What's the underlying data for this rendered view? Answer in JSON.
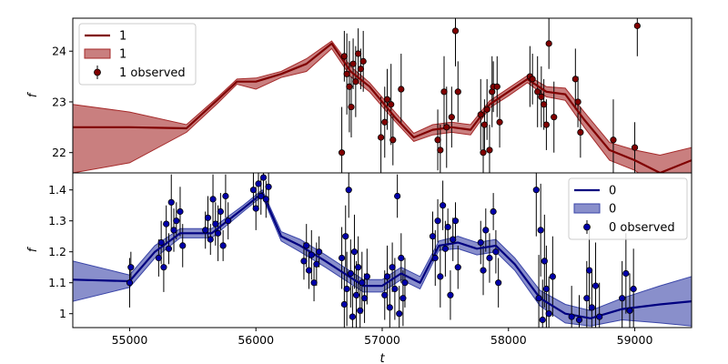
{
  "chart_data": [
    {
      "type": "line",
      "panel": "top",
      "ylabel": "f",
      "xlim": [
        54550,
        59450
      ],
      "ylim": [
        21.6,
        24.65
      ],
      "yticks": [
        22,
        23,
        24
      ],
      "legend": {
        "placement": "top-left",
        "labels": [
          "1",
          "1",
          "1 observed"
        ]
      },
      "colors": {
        "line": "#800000",
        "band": "#a52a2a",
        "points": "#800000"
      },
      "model": {
        "t": [
          54550,
          55000,
          55450,
          55700,
          55850,
          56000,
          56200,
          56400,
          56600,
          56750,
          56900,
          57100,
          57250,
          57400,
          57550,
          57700,
          57850,
          58000,
          58150,
          58300,
          58450,
          58600,
          58800,
          59000,
          59200,
          59450
        ],
        "mean": [
          22.5,
          22.5,
          22.48,
          23.05,
          23.4,
          23.4,
          23.55,
          23.75,
          24.15,
          23.6,
          23.3,
          22.7,
          22.3,
          22.45,
          22.5,
          22.45,
          22.95,
          23.2,
          23.45,
          23.2,
          23.15,
          22.65,
          22.05,
          21.85,
          21.6,
          21.85
        ],
        "upper": [
          22.95,
          22.8,
          22.55,
          23.1,
          23.45,
          23.47,
          23.6,
          23.85,
          24.2,
          23.7,
          23.38,
          22.8,
          22.38,
          22.55,
          22.6,
          22.55,
          23.02,
          23.27,
          23.52,
          23.3,
          23.27,
          22.8,
          22.2,
          22.05,
          21.95,
          22.1
        ],
        "lower": [
          21.6,
          21.8,
          22.4,
          22.98,
          23.35,
          23.25,
          23.48,
          23.6,
          24.05,
          23.5,
          23.2,
          22.62,
          22.22,
          22.35,
          22.4,
          22.35,
          22.88,
          23.12,
          23.38,
          23.1,
          23.03,
          22.5,
          21.85,
          21.65,
          21.3,
          21.6
        ]
      },
      "observed": [
        {
          "t": 56680,
          "y": 22.0,
          "err": 0.9
        },
        {
          "t": 56700,
          "y": 23.9,
          "err": 0.5
        },
        {
          "t": 56720,
          "y": 23.55,
          "err": 0.8
        },
        {
          "t": 56740,
          "y": 23.3,
          "err": 0.9
        },
        {
          "t": 56755,
          "y": 22.9,
          "err": 0.6
        },
        {
          "t": 56770,
          "y": 23.75,
          "err": 0.5
        },
        {
          "t": 56790,
          "y": 23.4,
          "err": 0.7
        },
        {
          "t": 56810,
          "y": 23.95,
          "err": 0.5
        },
        {
          "t": 56830,
          "y": 23.65,
          "err": 0.4
        },
        {
          "t": 56850,
          "y": 23.8,
          "err": 0.6
        },
        {
          "t": 56990,
          "y": 22.3,
          "err": 0.8
        },
        {
          "t": 57020,
          "y": 22.6,
          "err": 0.7
        },
        {
          "t": 57040,
          "y": 23.05,
          "err": 0.6
        },
        {
          "t": 57070,
          "y": 22.95,
          "err": 0.8
        },
        {
          "t": 57085,
          "y": 22.25,
          "err": 0.5
        },
        {
          "t": 57150,
          "y": 23.25,
          "err": 0.7
        },
        {
          "t": 57440,
          "y": 22.25,
          "err": 0.6
        },
        {
          "t": 57460,
          "y": 22.05,
          "err": 0.5
        },
        {
          "t": 57490,
          "y": 23.2,
          "err": 0.7
        },
        {
          "t": 57510,
          "y": 22.5,
          "err": 0.8
        },
        {
          "t": 57550,
          "y": 22.7,
          "err": 0.6
        },
        {
          "t": 57580,
          "y": 24.4,
          "err": 0.7
        },
        {
          "t": 57600,
          "y": 23.2,
          "err": 0.6
        },
        {
          "t": 57780,
          "y": 22.75,
          "err": 0.7
        },
        {
          "t": 57800,
          "y": 22.0,
          "err": 0.5
        },
        {
          "t": 57810,
          "y": 22.55,
          "err": 0.5
        },
        {
          "t": 57830,
          "y": 22.85,
          "err": 0.6
        },
        {
          "t": 57850,
          "y": 22.05,
          "err": 0.5
        },
        {
          "t": 57870,
          "y": 23.2,
          "err": 0.7
        },
        {
          "t": 57880,
          "y": 23.3,
          "err": 0.5
        },
        {
          "t": 57910,
          "y": 23.3,
          "err": 0.6
        },
        {
          "t": 57930,
          "y": 22.6,
          "err": 0.5
        },
        {
          "t": 58170,
          "y": 23.5,
          "err": 0.6
        },
        {
          "t": 58190,
          "y": 23.45,
          "err": 0.5
        },
        {
          "t": 58230,
          "y": 23.2,
          "err": 0.7
        },
        {
          "t": 58260,
          "y": 23.1,
          "err": 0.6
        },
        {
          "t": 58280,
          "y": 22.95,
          "err": 0.5
        },
        {
          "t": 58300,
          "y": 22.55,
          "err": 0.5
        },
        {
          "t": 58320,
          "y": 24.15,
          "err": 0.5
        },
        {
          "t": 58360,
          "y": 22.7,
          "err": 0.7
        },
        {
          "t": 58530,
          "y": 23.45,
          "err": 0.6
        },
        {
          "t": 58550,
          "y": 23.0,
          "err": 0.5
        },
        {
          "t": 58570,
          "y": 22.4,
          "err": 0.5
        },
        {
          "t": 58830,
          "y": 22.25,
          "err": 0.8
        },
        {
          "t": 59000,
          "y": 22.1,
          "err": 0.5
        },
        {
          "t": 59020,
          "y": 24.5,
          "err": 0.6
        }
      ]
    },
    {
      "type": "line",
      "panel": "bottom",
      "xlabel": "t",
      "ylabel": "f",
      "xlim": [
        54550,
        59450
      ],
      "ylim": [
        0.955,
        1.455
      ],
      "xticks": [
        55000,
        56000,
        57000,
        58000,
        59000
      ],
      "yticks": [
        1.0,
        1.1,
        1.2,
        1.3,
        1.4
      ],
      "legend": {
        "placement": "top-right",
        "labels": [
          "0",
          "0",
          "0 observed"
        ]
      },
      "colors": {
        "line": "#000080",
        "band": "#3a45a8",
        "points": "#0000aa"
      },
      "model": {
        "t": [
          54550,
          55000,
          55200,
          55400,
          55650,
          55900,
          56050,
          56200,
          56350,
          56550,
          56700,
          56850,
          57000,
          57150,
          57300,
          57450,
          57600,
          57750,
          57900,
          58050,
          58250,
          58450,
          58650,
          58900,
          59200,
          59450
        ],
        "mean": [
          1.11,
          1.105,
          1.2,
          1.26,
          1.26,
          1.34,
          1.39,
          1.25,
          1.22,
          1.17,
          1.13,
          1.09,
          1.09,
          1.13,
          1.1,
          1.22,
          1.23,
          1.21,
          1.22,
          1.16,
          1.05,
          1.0,
          0.985,
          1.015,
          1.03,
          1.04
        ],
        "upper": [
          1.17,
          1.125,
          1.22,
          1.275,
          1.275,
          1.35,
          1.4,
          1.265,
          1.24,
          1.19,
          1.15,
          1.11,
          1.11,
          1.15,
          1.12,
          1.235,
          1.25,
          1.23,
          1.24,
          1.18,
          1.075,
          1.03,
          1.01,
          1.05,
          1.09,
          1.12
        ],
        "lower": [
          1.04,
          1.085,
          1.18,
          1.245,
          1.245,
          1.33,
          1.38,
          1.235,
          1.2,
          1.15,
          1.11,
          1.07,
          1.07,
          1.11,
          1.08,
          1.205,
          1.21,
          1.19,
          1.2,
          1.14,
          1.025,
          0.97,
          0.96,
          0.98,
          0.97,
          0.96
        ]
      },
      "observed": [
        {
          "t": 55000,
          "y": 1.1,
          "err": 0.08
        },
        {
          "t": 55010,
          "y": 1.15,
          "err": 0.05
        },
        {
          "t": 55230,
          "y": 1.18,
          "err": 0.06
        },
        {
          "t": 55250,
          "y": 1.23,
          "err": 0.07
        },
        {
          "t": 55270,
          "y": 1.15,
          "err": 0.08
        },
        {
          "t": 55290,
          "y": 1.29,
          "err": 0.06
        },
        {
          "t": 55310,
          "y": 1.21,
          "err": 0.05
        },
        {
          "t": 55330,
          "y": 1.36,
          "err": 0.09
        },
        {
          "t": 55350,
          "y": 1.27,
          "err": 0.07
        },
        {
          "t": 55370,
          "y": 1.3,
          "err": 0.06
        },
        {
          "t": 55400,
          "y": 1.33,
          "err": 0.08
        },
        {
          "t": 55420,
          "y": 1.22,
          "err": 0.07
        },
        {
          "t": 55600,
          "y": 1.27,
          "err": 0.06
        },
        {
          "t": 55620,
          "y": 1.31,
          "err": 0.07
        },
        {
          "t": 55640,
          "y": 1.24,
          "err": 0.05
        },
        {
          "t": 55660,
          "y": 1.37,
          "err": 0.08
        },
        {
          "t": 55680,
          "y": 1.29,
          "err": 0.07
        },
        {
          "t": 55700,
          "y": 1.26,
          "err": 0.09
        },
        {
          "t": 55720,
          "y": 1.33,
          "err": 0.06
        },
        {
          "t": 55740,
          "y": 1.22,
          "err": 0.05
        },
        {
          "t": 55760,
          "y": 1.38,
          "err": 0.07
        },
        {
          "t": 55780,
          "y": 1.3,
          "err": 0.06
        },
        {
          "t": 55980,
          "y": 1.4,
          "err": 0.06
        },
        {
          "t": 56000,
          "y": 1.34,
          "err": 0.07
        },
        {
          "t": 56020,
          "y": 1.42,
          "err": 0.08
        },
        {
          "t": 56040,
          "y": 1.38,
          "err": 0.06
        },
        {
          "t": 56060,
          "y": 1.44,
          "err": 0.05
        },
        {
          "t": 56080,
          "y": 1.37,
          "err": 0.06
        },
        {
          "t": 56100,
          "y": 1.41,
          "err": 0.07
        },
        {
          "t": 56380,
          "y": 1.17,
          "err": 0.06
        },
        {
          "t": 56400,
          "y": 1.22,
          "err": 0.07
        },
        {
          "t": 56420,
          "y": 1.14,
          "err": 0.06
        },
        {
          "t": 56440,
          "y": 1.19,
          "err": 0.08
        },
        {
          "t": 56460,
          "y": 1.1,
          "err": 0.06
        },
        {
          "t": 56480,
          "y": 1.16,
          "err": 0.07
        },
        {
          "t": 56500,
          "y": 1.2,
          "err": 0.05
        },
        {
          "t": 56680,
          "y": 1.18,
          "err": 0.1
        },
        {
          "t": 56700,
          "y": 1.03,
          "err": 0.12
        },
        {
          "t": 56710,
          "y": 1.25,
          "err": 0.1
        },
        {
          "t": 56720,
          "y": 1.08,
          "err": 0.12
        },
        {
          "t": 56735,
          "y": 1.4,
          "err": 0.09
        },
        {
          "t": 56750,
          "y": 1.13,
          "err": 0.11
        },
        {
          "t": 56765,
          "y": 0.99,
          "err": 0.1
        },
        {
          "t": 56780,
          "y": 1.2,
          "err": 0.12
        },
        {
          "t": 56795,
          "y": 1.06,
          "err": 0.11
        },
        {
          "t": 56810,
          "y": 1.15,
          "err": 0.1
        },
        {
          "t": 56825,
          "y": 1.01,
          "err": 0.09
        },
        {
          "t": 56840,
          "y": 1.1,
          "err": 0.1
        },
        {
          "t": 56860,
          "y": 1.05,
          "err": 0.08
        },
        {
          "t": 56880,
          "y": 1.12,
          "err": 0.09
        },
        {
          "t": 57020,
          "y": 1.06,
          "err": 0.08
        },
        {
          "t": 57040,
          "y": 1.12,
          "err": 0.1
        },
        {
          "t": 57060,
          "y": 1.02,
          "err": 0.09
        },
        {
          "t": 57080,
          "y": 1.15,
          "err": 0.08
        },
        {
          "t": 57100,
          "y": 1.08,
          "err": 0.1
        },
        {
          "t": 57120,
          "y": 1.38,
          "err": 0.07
        },
        {
          "t": 57135,
          "y": 1.0,
          "err": 0.09
        },
        {
          "t": 57150,
          "y": 1.18,
          "err": 0.08
        },
        {
          "t": 57165,
          "y": 1.05,
          "err": 0.09
        },
        {
          "t": 57180,
          "y": 1.1,
          "err": 0.08
        },
        {
          "t": 57400,
          "y": 1.25,
          "err": 0.08
        },
        {
          "t": 57420,
          "y": 1.18,
          "err": 0.09
        },
        {
          "t": 57440,
          "y": 1.3,
          "err": 0.07
        },
        {
          "t": 57460,
          "y": 1.12,
          "err": 0.1
        },
        {
          "t": 57480,
          "y": 1.35,
          "err": 0.08
        },
        {
          "t": 57500,
          "y": 1.21,
          "err": 0.09
        },
        {
          "t": 57520,
          "y": 1.28,
          "err": 0.06
        },
        {
          "t": 57540,
          "y": 1.06,
          "err": 0.08
        },
        {
          "t": 57560,
          "y": 1.24,
          "err": 0.07
        },
        {
          "t": 57580,
          "y": 1.3,
          "err": 0.06
        },
        {
          "t": 57600,
          "y": 1.15,
          "err": 0.07
        },
        {
          "t": 57780,
          "y": 1.23,
          "err": 0.07
        },
        {
          "t": 57800,
          "y": 1.14,
          "err": 0.08
        },
        {
          "t": 57820,
          "y": 1.27,
          "err": 0.07
        },
        {
          "t": 57850,
          "y": 1.18,
          "err": 0.08
        },
        {
          "t": 57880,
          "y": 1.33,
          "err": 0.06
        },
        {
          "t": 57900,
          "y": 1.2,
          "err": 0.07
        },
        {
          "t": 57920,
          "y": 1.1,
          "err": 0.08
        },
        {
          "t": 58220,
          "y": 1.4,
          "err": 0.15
        },
        {
          "t": 58240,
          "y": 1.05,
          "err": 0.14
        },
        {
          "t": 58255,
          "y": 1.27,
          "err": 0.15
        },
        {
          "t": 58270,
          "y": 0.98,
          "err": 0.13
        },
        {
          "t": 58285,
          "y": 1.17,
          "err": 0.15
        },
        {
          "t": 58300,
          "y": 1.08,
          "err": 0.14
        },
        {
          "t": 58320,
          "y": 1.0,
          "err": 0.12
        },
        {
          "t": 58350,
          "y": 1.12,
          "err": 0.13
        },
        {
          "t": 58500,
          "y": 0.99,
          "err": 0.1
        },
        {
          "t": 58560,
          "y": 0.98,
          "err": 0.08
        },
        {
          "t": 58620,
          "y": 1.05,
          "err": 0.12
        },
        {
          "t": 58640,
          "y": 1.14,
          "err": 0.13
        },
        {
          "t": 58660,
          "y": 1.02,
          "err": 0.12
        },
        {
          "t": 58690,
          "y": 1.09,
          "err": 0.14
        },
        {
          "t": 58720,
          "y": 0.99,
          "err": 0.11
        },
        {
          "t": 58900,
          "y": 1.05,
          "err": 0.12
        },
        {
          "t": 58930,
          "y": 1.13,
          "err": 0.13
        },
        {
          "t": 58960,
          "y": 1.01,
          "err": 0.12
        },
        {
          "t": 58990,
          "y": 1.08,
          "err": 0.13
        }
      ]
    }
  ]
}
